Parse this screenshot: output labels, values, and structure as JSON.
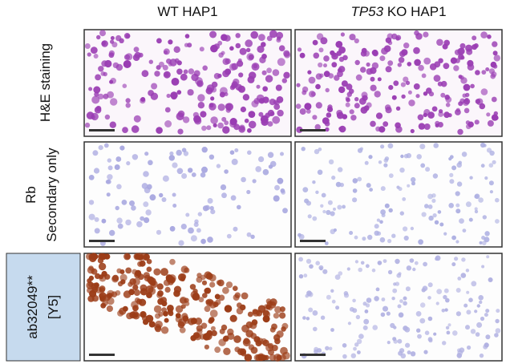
{
  "columns": [
    {
      "text": "WT HAP1"
    },
    {
      "italic": "TP53",
      "text": "KO HAP1"
    }
  ],
  "rows": [
    {
      "lines": [
        "H&E staining"
      ]
    },
    {
      "lines": [
        "Rb",
        "Secondary only"
      ]
    },
    {
      "lines": [
        "ab32049**",
        "[Y5]"
      ]
    }
  ]
}
